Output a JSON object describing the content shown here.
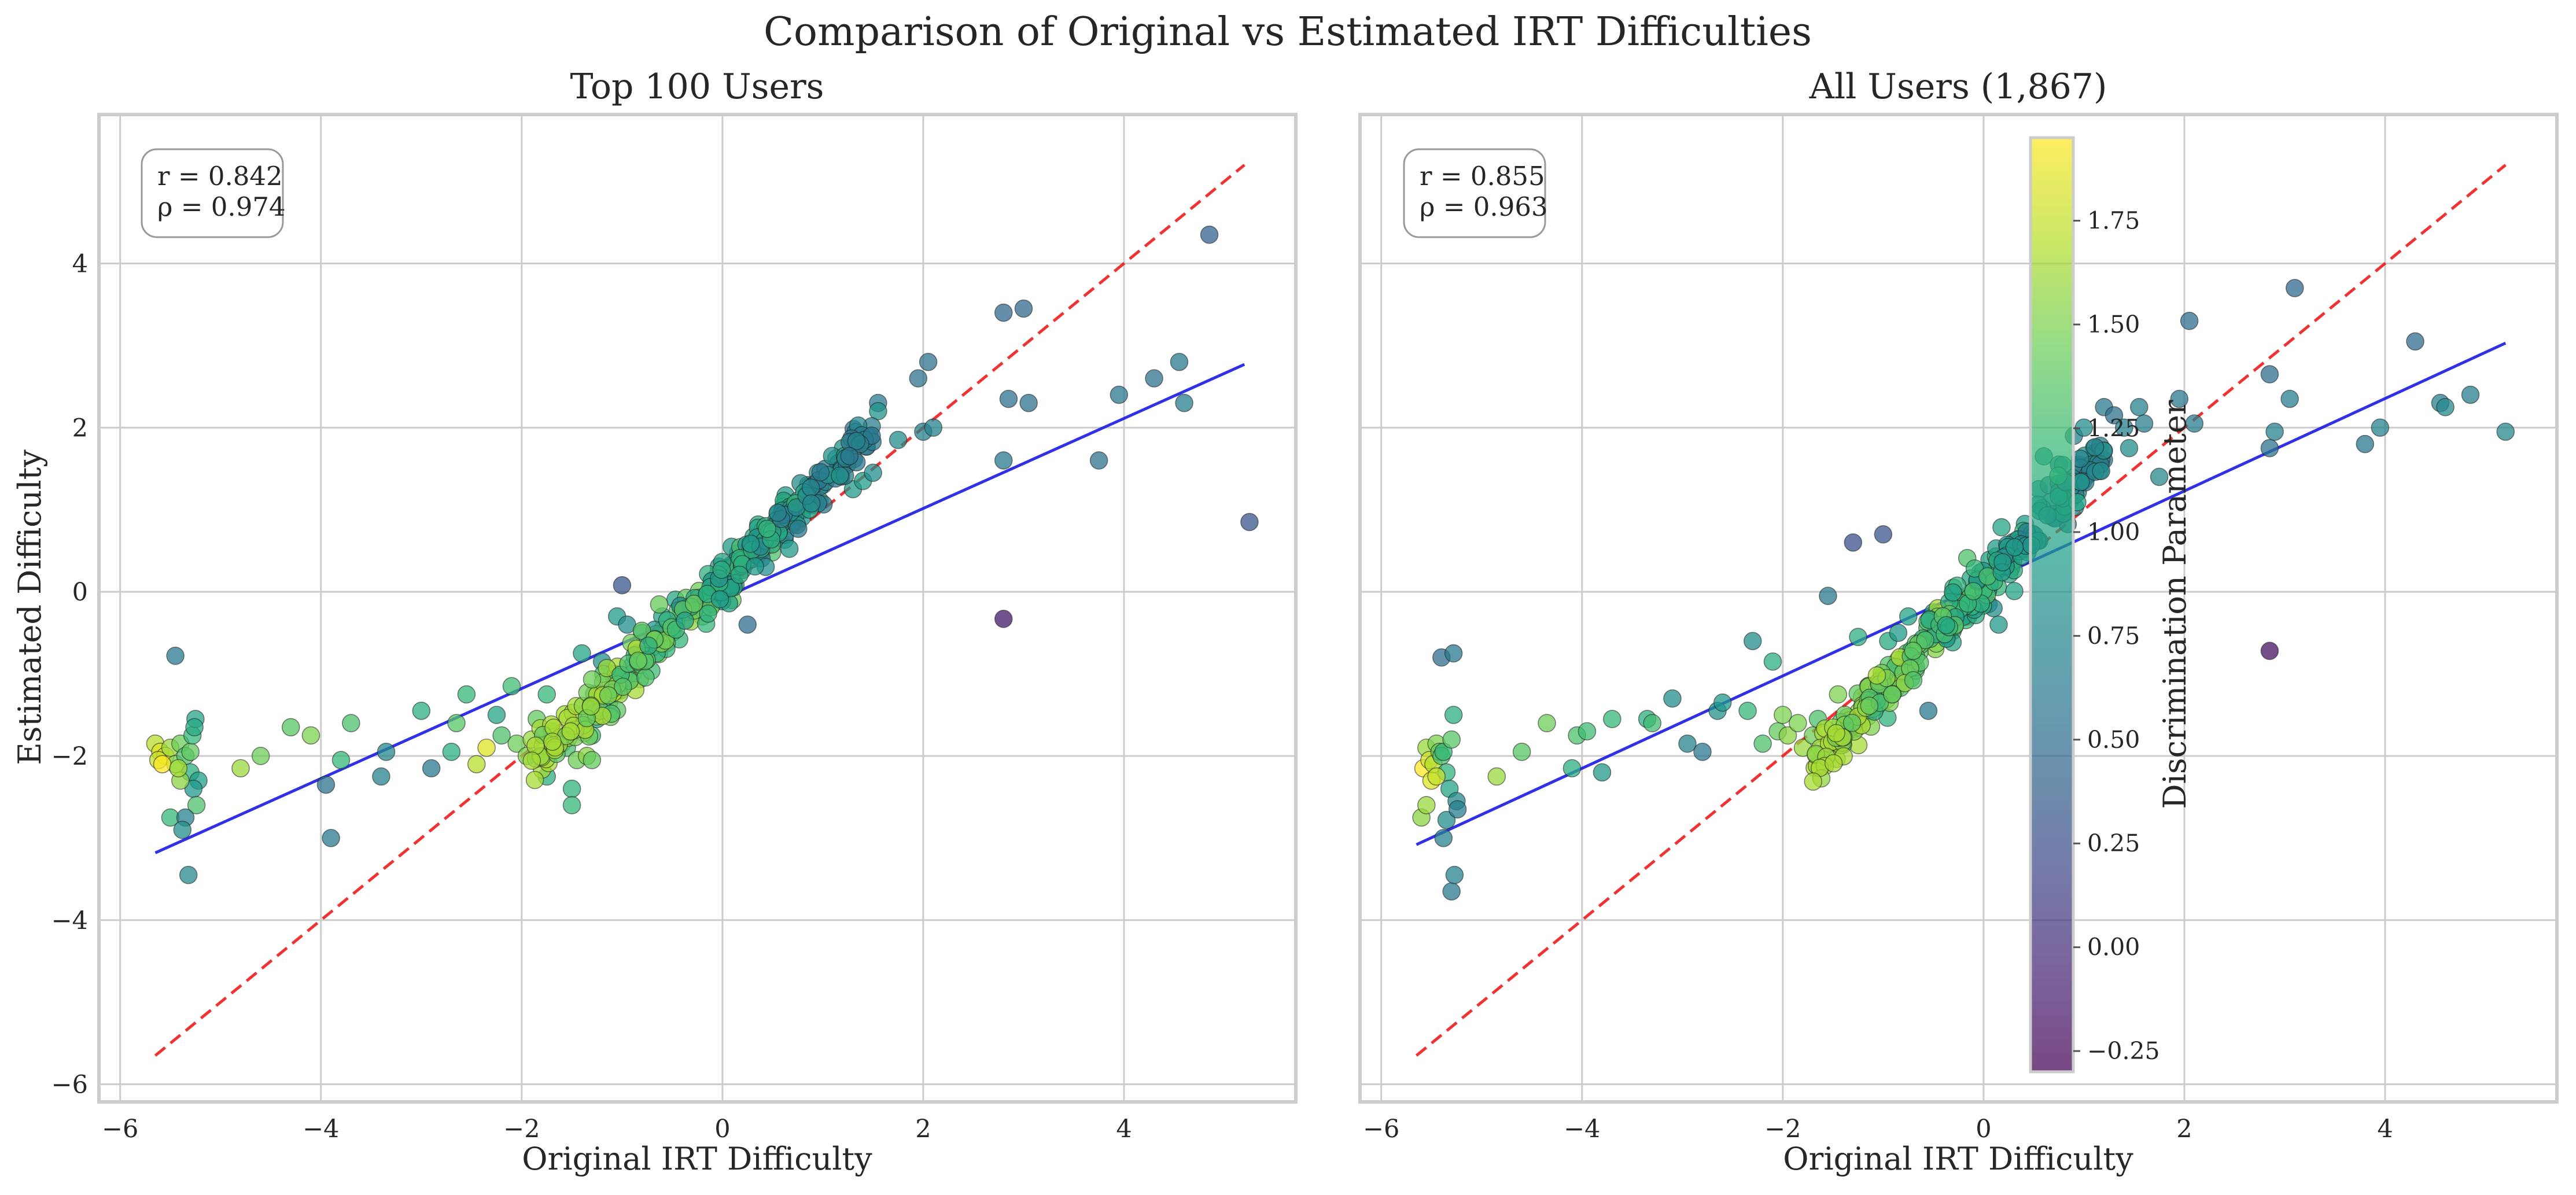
{
  "suptitle": "Comparison of Original vs Estimated IRT Difficulties",
  "chart_data": [
    {
      "type": "scatter",
      "title": "Top 100 Users",
      "xlabel": "Original IRT Difficulty",
      "ylabel": "Estimated Difficulty",
      "xlim": [
        -6.2,
        5.7
      ],
      "ylim": [
        -6.2,
        5.8
      ],
      "xticks": [
        -6,
        -4,
        -2,
        0,
        2,
        4
      ],
      "xtick_labels": [
        "−6",
        "−4",
        "−2",
        "0",
        "2",
        "4"
      ],
      "yticks": [
        -6,
        -4,
        -2,
        0,
        2,
        4
      ],
      "ytick_labels": [
        "−6",
        "−4",
        "−2",
        "0",
        "2",
        "4"
      ],
      "grid": true,
      "stats": {
        "r": "r = 0.842",
        "rho": "ρ = 0.974"
      },
      "identity_line": {
        "x": [
          -5.65,
          5.2
        ],
        "y": [
          -5.65,
          5.2
        ],
        "color": "#ee1c1c",
        "style": "dashed"
      },
      "fit_line": {
        "x": [
          -5.65,
          5.2
        ],
        "y": [
          -3.18,
          2.77
        ],
        "color": "#1a1ae6"
      },
      "points": [
        [
          -5.65,
          -1.85,
          1.7
        ],
        [
          -5.6,
          -1.95,
          1.85
        ],
        [
          -5.55,
          -2.0,
          1.9
        ],
        [
          -5.62,
          -2.05,
          1.75
        ],
        [
          -5.5,
          -1.9,
          1.6
        ],
        [
          -5.45,
          -2.1,
          1.5
        ],
        [
          -5.4,
          -1.85,
          1.45
        ],
        [
          -5.35,
          -2.0,
          1.3
        ],
        [
          -5.3,
          -1.95,
          1.4
        ],
        [
          -5.28,
          -1.75,
          1.2
        ],
        [
          -5.25,
          -1.55,
          1.0
        ],
        [
          -5.26,
          -1.65,
          1.05
        ],
        [
          -5.3,
          -2.2,
          1.1
        ],
        [
          -5.22,
          -2.3,
          0.95
        ],
        [
          -5.27,
          -2.4,
          0.9
        ],
        [
          -5.24,
          -2.6,
          1.3
        ],
        [
          -5.4,
          -2.3,
          1.55
        ],
        [
          -5.5,
          -2.75,
          1.2
        ],
        [
          -5.35,
          -2.75,
          0.7
        ],
        [
          -5.38,
          -2.9,
          0.8
        ],
        [
          -5.32,
          -3.45,
          0.75
        ],
        [
          -5.45,
          -0.78,
          0.6
        ],
        [
          -5.58,
          -2.1,
          1.95
        ],
        [
          -5.42,
          -2.15,
          1.65
        ],
        [
          -4.8,
          -2.15,
          1.6
        ],
        [
          -4.6,
          -2.0,
          1.45
        ],
        [
          -4.3,
          -1.65,
          1.35
        ],
        [
          -4.1,
          -1.75,
          1.5
        ],
        [
          -3.95,
          -2.35,
          0.55
        ],
        [
          -3.9,
          -3.0,
          0.6
        ],
        [
          -3.8,
          -2.05,
          1.2
        ],
        [
          -3.7,
          -1.6,
          1.3
        ],
        [
          -3.4,
          -2.25,
          0.7
        ],
        [
          -3.35,
          -1.95,
          0.75
        ],
        [
          -3.0,
          -1.45,
          1.1
        ],
        [
          -2.9,
          -2.15,
          0.6
        ],
        [
          -2.7,
          -1.95,
          1.1
        ],
        [
          -2.65,
          -1.6,
          1.35
        ],
        [
          -2.55,
          -1.25,
          1.2
        ],
        [
          -2.45,
          -2.1,
          1.7
        ],
        [
          -2.35,
          -1.9,
          1.85
        ],
        [
          -2.25,
          -1.5,
          1.0
        ],
        [
          -2.2,
          -1.75,
          1.3
        ],
        [
          -2.1,
          -1.15,
          1.25
        ],
        [
          -2.05,
          -1.85,
          1.45
        ],
        [
          -1.95,
          -2.0,
          1.5
        ],
        [
          -1.9,
          -1.8,
          1.6
        ],
        [
          -1.85,
          -1.55,
          1.4
        ],
        [
          -1.75,
          -1.25,
          1.2
        ],
        [
          -1.75,
          -2.25,
          1.1
        ],
        [
          -1.7,
          -1.7,
          1.35
        ],
        [
          -1.6,
          -1.85,
          1.5
        ],
        [
          -1.55,
          -1.9,
          1.3
        ],
        [
          -1.5,
          -2.4,
          1.15
        ],
        [
          -1.5,
          -2.6,
          1.2
        ],
        [
          -1.45,
          -2.05,
          1.45
        ],
        [
          -1.4,
          -0.75,
          1.0
        ],
        [
          -1.35,
          -2.0,
          1.55
        ],
        [
          -1.3,
          -1.75,
          1.25
        ],
        [
          -1.3,
          -2.05,
          1.4
        ],
        [
          -1.25,
          -1.55,
          1.1
        ],
        [
          -1.2,
          -0.85,
          0.85
        ],
        [
          -1.15,
          -1.3,
          1.3
        ],
        [
          -1.1,
          -1.0,
          0.9
        ],
        [
          -1.05,
          -0.3,
          0.9
        ],
        [
          -1.0,
          0.08,
          0.3
        ],
        [
          -0.95,
          -0.4,
          0.8
        ],
        [
          -0.9,
          -0.9,
          1.0
        ],
        [
          -0.85,
          -0.75,
          1.2
        ],
        [
          -0.8,
          -0.5,
          0.9
        ],
        [
          -0.7,
          -0.6,
          1.1
        ],
        [
          -0.6,
          -0.3,
          1.0
        ],
        [
          -0.5,
          -0.5,
          1.35
        ],
        [
          -0.35,
          -0.25,
          1.4
        ],
        [
          -0.2,
          -0.3,
          1.45
        ],
        [
          -0.1,
          -0.15,
          1.3
        ],
        [
          0.1,
          -0.1,
          1.4
        ],
        [
          0.25,
          -0.4,
          0.5
        ],
        [
          0.3,
          0.45,
          0.85
        ],
        [
          0.5,
          0.65,
          0.95
        ],
        [
          0.55,
          0.95,
          1.15
        ],
        [
          0.65,
          0.9,
          0.9
        ],
        [
          0.7,
          0.85,
          0.85
        ],
        [
          0.8,
          1.05,
          0.75
        ],
        [
          0.85,
          1.3,
          0.85
        ],
        [
          0.9,
          1.15,
          0.8
        ],
        [
          0.95,
          1.45,
          0.85
        ],
        [
          1.0,
          1.3,
          0.9
        ],
        [
          1.15,
          1.55,
          0.95
        ],
        [
          1.2,
          1.75,
          0.85
        ],
        [
          1.25,
          1.65,
          0.9
        ],
        [
          1.3,
          1.25,
          0.9
        ],
        [
          1.4,
          1.35,
          0.95
        ],
        [
          1.5,
          1.45,
          0.8
        ],
        [
          1.55,
          2.3,
          0.6
        ],
        [
          1.55,
          2.2,
          0.85
        ],
        [
          1.75,
          1.85,
          0.8
        ],
        [
          1.95,
          2.6,
          0.55
        ],
        [
          2.0,
          1.95,
          0.7
        ],
        [
          2.05,
          2.8,
          0.55
        ],
        [
          2.1,
          2.0,
          0.7
        ],
        [
          2.8,
          1.6,
          0.6
        ],
        [
          2.8,
          3.4,
          0.45
        ],
        [
          2.85,
          2.35,
          0.55
        ],
        [
          2.8,
          -0.33,
          -0.15
        ],
        [
          3.0,
          3.45,
          0.45
        ],
        [
          3.05,
          2.3,
          0.55
        ],
        [
          3.75,
          1.6,
          0.55
        ],
        [
          3.95,
          2.4,
          0.6
        ],
        [
          4.3,
          2.6,
          0.55
        ],
        [
          4.55,
          2.8,
          0.6
        ],
        [
          4.6,
          2.3,
          0.65
        ],
        [
          4.85,
          4.35,
          0.4
        ],
        [
          5.25,
          0.85,
          0.3
        ]
      ],
      "dense_cluster": {
        "x_range": [
          -1.9,
          1.5
        ],
        "slope": 1.2,
        "intercept": 0.15,
        "spread": 0.15,
        "n": 300
      }
    },
    {
      "type": "scatter",
      "title": "All Users (1,867)",
      "xlabel": "Original IRT Difficulty",
      "ylabel": "",
      "xlim": [
        -6.2,
        5.7
      ],
      "ylim": [
        -6.2,
        5.8
      ],
      "xticks": [
        -6,
        -4,
        -2,
        0,
        2,
        4
      ],
      "xtick_labels": [
        "−6",
        "−4",
        "−2",
        "0",
        "2",
        "4"
      ],
      "grid": true,
      "stats": {
        "r": "r = 0.855",
        "rho": "ρ = 0.963"
      },
      "identity_line": {
        "x": [
          -5.65,
          5.2
        ],
        "y": [
          -5.65,
          5.2
        ],
        "color": "#ee1c1c",
        "style": "dashed"
      },
      "fit_line": {
        "x": [
          -5.65,
          5.2
        ],
        "y": [
          -3.08,
          3.03
        ],
        "color": "#1a1ae6"
      },
      "points": [
        [
          -5.6,
          -2.75,
          1.55
        ],
        [
          -5.58,
          -2.15,
          1.95
        ],
        [
          -5.55,
          -1.9,
          1.6
        ],
        [
          -5.52,
          -2.05,
          1.8
        ],
        [
          -5.5,
          -2.3,
          1.85
        ],
        [
          -5.48,
          -2.1,
          1.7
        ],
        [
          -5.45,
          -1.85,
          1.5
        ],
        [
          -5.42,
          -1.95,
          1.4
        ],
        [
          -5.4,
          -2.0,
          1.3
        ],
        [
          -5.38,
          -1.95,
          1.2
        ],
        [
          -5.35,
          -2.2,
          1.15
        ],
        [
          -5.32,
          -2.4,
          1.0
        ],
        [
          -5.3,
          -1.8,
          1.35
        ],
        [
          -5.28,
          -1.5,
          1.1
        ],
        [
          -5.35,
          -2.78,
          0.8
        ],
        [
          -5.38,
          -3.0,
          0.7
        ],
        [
          -5.3,
          -3.65,
          0.6
        ],
        [
          -5.27,
          -3.45,
          0.7
        ],
        [
          -5.25,
          -2.55,
          0.75
        ],
        [
          -5.24,
          -2.65,
          0.65
        ],
        [
          -5.4,
          -0.8,
          0.5
        ],
        [
          -5.28,
          -0.75,
          0.6
        ],
        [
          -5.55,
          -2.6,
          1.6
        ],
        [
          -5.45,
          -2.25,
          1.75
        ],
        [
          -4.85,
          -2.25,
          1.6
        ],
        [
          -4.6,
          -1.95,
          1.35
        ],
        [
          -4.35,
          -1.6,
          1.45
        ],
        [
          -4.1,
          -2.15,
          1.1
        ],
        [
          -4.05,
          -1.75,
          1.3
        ],
        [
          -3.95,
          -1.7,
          1.25
        ],
        [
          -3.8,
          -2.2,
          0.9
        ],
        [
          -3.7,
          -1.55,
          1.2
        ],
        [
          -3.35,
          -1.55,
          1.1
        ],
        [
          -3.3,
          -1.6,
          1.25
        ],
        [
          -3.1,
          -1.3,
          0.8
        ],
        [
          -2.95,
          -1.85,
          0.7
        ],
        [
          -2.8,
          -1.95,
          0.6
        ],
        [
          -2.65,
          -1.45,
          0.85
        ],
        [
          -2.6,
          -1.35,
          0.9
        ],
        [
          -2.35,
          -1.45,
          1.2
        ],
        [
          -2.3,
          -0.6,
          0.8
        ],
        [
          -2.2,
          -1.85,
          1.3
        ],
        [
          -2.1,
          -0.85,
          1.1
        ],
        [
          -2.05,
          -1.7,
          1.4
        ],
        [
          -2.0,
          -1.5,
          1.5
        ],
        [
          -1.95,
          -1.75,
          1.55
        ],
        [
          -1.85,
          -1.6,
          1.5
        ],
        [
          -1.8,
          -1.9,
          1.6
        ],
        [
          -1.7,
          -1.75,
          1.45
        ],
        [
          -1.6,
          -2.1,
          1.4
        ],
        [
          -1.65,
          -1.55,
          1.3
        ],
        [
          -1.55,
          -0.05,
          0.6
        ],
        [
          -1.45,
          -1.25,
          1.5
        ],
        [
          -1.3,
          0.6,
          0.25
        ],
        [
          -1.25,
          -0.55,
          1.1
        ],
        [
          -1.2,
          -1.45,
          1.35
        ],
        [
          -1.15,
          -1.15,
          1.2
        ],
        [
          -1.0,
          0.7,
          0.3
        ],
        [
          -0.95,
          -0.6,
          1.05
        ],
        [
          -0.85,
          -0.5,
          0.9
        ],
        [
          -0.75,
          -0.3,
          1.0
        ],
        [
          -0.55,
          -1.45,
          0.6
        ],
        [
          -0.5,
          -0.25,
          1.1
        ],
        [
          -0.3,
          0.05,
          1.2
        ],
        [
          -0.15,
          -0.3,
          1.25
        ],
        [
          0.05,
          -0.15,
          0.6
        ],
        [
          0.1,
          -0.2,
          0.8
        ],
        [
          0.15,
          -0.4,
          0.9
        ],
        [
          0.3,
          0.5,
          1.0
        ],
        [
          0.4,
          0.65,
          0.85
        ],
        [
          0.55,
          1.25,
          0.8
        ],
        [
          0.6,
          1.65,
          0.9
        ],
        [
          0.65,
          1.3,
          0.7
        ],
        [
          0.75,
          1.55,
          0.7
        ],
        [
          0.85,
          1.3,
          0.8
        ],
        [
          0.9,
          1.9,
          0.7
        ],
        [
          0.95,
          1.55,
          0.7
        ],
        [
          1.0,
          2.0,
          0.8
        ],
        [
          1.1,
          1.75,
          0.8
        ],
        [
          1.2,
          2.25,
          0.6
        ],
        [
          1.3,
          2.15,
          0.55
        ],
        [
          1.4,
          2.0,
          0.7
        ],
        [
          1.45,
          1.75,
          0.8
        ],
        [
          1.55,
          2.25,
          0.7
        ],
        [
          1.6,
          2.05,
          0.65
        ],
        [
          1.75,
          1.4,
          0.75
        ],
        [
          1.95,
          2.35,
          0.6
        ],
        [
          2.05,
          3.3,
          0.5
        ],
        [
          2.1,
          2.05,
          0.65
        ],
        [
          2.85,
          1.75,
          0.55
        ],
        [
          2.85,
          2.65,
          0.5
        ],
        [
          2.9,
          1.95,
          0.7
        ],
        [
          2.85,
          -0.72,
          -0.2
        ],
        [
          3.05,
          2.35,
          0.65
        ],
        [
          3.1,
          3.7,
          0.45
        ],
        [
          3.8,
          1.8,
          0.6
        ],
        [
          3.95,
          2.0,
          0.7
        ],
        [
          4.3,
          3.05,
          0.5
        ],
        [
          4.55,
          2.3,
          0.7
        ],
        [
          4.6,
          2.25,
          0.75
        ],
        [
          4.85,
          2.4,
          0.65
        ],
        [
          5.2,
          1.95,
          0.75
        ]
      ],
      "dense_cluster": {
        "x_range": [
          -1.7,
          1.2
        ],
        "slope": 1.3,
        "intercept": 0.1,
        "spread": 0.15,
        "n": 300
      }
    }
  ],
  "colorbar": {
    "label": "Discrimination Parameter",
    "min": -0.3,
    "max": 1.95,
    "ticks": [
      -0.25,
      0.0,
      0.25,
      0.5,
      0.75,
      1.0,
      1.25,
      1.5,
      1.75
    ],
    "tick_labels": [
      "−0.25",
      "0.00",
      "0.25",
      "0.50",
      "0.75",
      "1.00",
      "1.25",
      "1.50",
      "1.75"
    ],
    "colormap": "viridis"
  },
  "colors": {
    "grid": "#cccccc",
    "frame": "#cccccc",
    "identity": "#ee1c1c",
    "fit": "#1a1ae6",
    "viridis": [
      "#440154",
      "#482878",
      "#3e4989",
      "#31688e",
      "#26828e",
      "#1f9e89",
      "#35b779",
      "#6ece58",
      "#b5de2b",
      "#fde725"
    ]
  }
}
